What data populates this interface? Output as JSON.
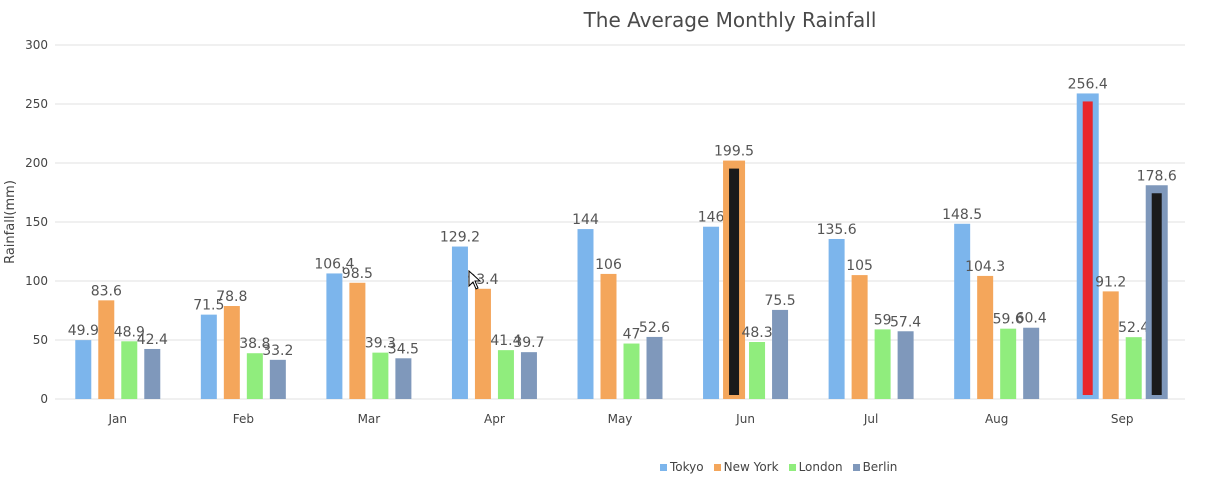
{
  "chart_data": {
    "type": "bar",
    "title": "The Average Monthly Rainfall",
    "ylabel": "Rainfall(mm)",
    "xlabel": "",
    "ylim": [
      0,
      300
    ],
    "yticks": [
      0,
      50,
      100,
      150,
      200,
      250,
      300
    ],
    "categories": [
      "Jan",
      "Feb",
      "Mar",
      "Apr",
      "May",
      "Jun",
      "Jul",
      "Aug",
      "Sep"
    ],
    "grid": true,
    "legend_position": "bottom",
    "series": [
      {
        "name": "Tokyo",
        "color": "#7cb5ec",
        "values": [
          49.9,
          71.5,
          106.4,
          129.2,
          144,
          146,
          135.6,
          148.5,
          256.4
        ]
      },
      {
        "name": "New York",
        "color": "#f4a65b",
        "values": [
          83.6,
          78.8,
          98.5,
          93.4,
          106,
          199.5,
          105,
          104.3,
          91.2
        ]
      },
      {
        "name": "London",
        "color": "#90ed7d",
        "values": [
          48.9,
          38.8,
          39.3,
          41.4,
          47,
          48.3,
          59,
          59.6,
          52.4
        ]
      },
      {
        "name": "Berlin",
        "color": "#7f98bb",
        "values": [
          42.4,
          33.2,
          34.5,
          39.7,
          52.6,
          75.5,
          57.4,
          60.4,
          178.6
        ]
      }
    ],
    "highlighted_bars": [
      {
        "series": "New York",
        "category": "Jun",
        "inner_color": "#1a1a1a"
      },
      {
        "series": "Tokyo",
        "category": "Sep",
        "inner_color": "#e8262b"
      },
      {
        "series": "Berlin",
        "category": "Sep",
        "inner_color": "#1a1a1a"
      }
    ],
    "colors": {
      "grid": "#e2e2e2",
      "axis_text": "#444444",
      "data_label": "#555555"
    }
  }
}
